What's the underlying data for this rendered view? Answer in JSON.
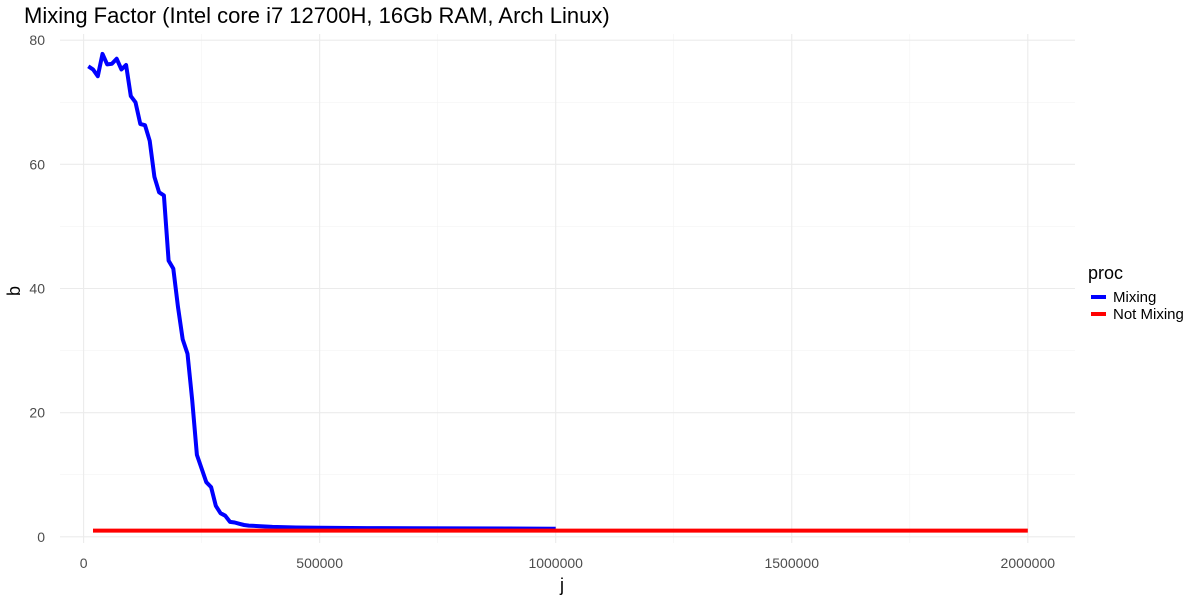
{
  "chart_data": {
    "type": "line",
    "title": "Mixing Factor (Intel core i7 12700H, 16Gb RAM, Arch Linux)",
    "xlabel": "j",
    "ylabel": "b",
    "xlim": [
      -50000,
      2100000
    ],
    "ylim": [
      -1,
      81
    ],
    "x_ticks": [
      0,
      500000,
      1000000,
      1500000,
      2000000
    ],
    "x_tick_labels": [
      "0",
      "500000",
      "1000000",
      "1500000",
      "2000000"
    ],
    "y_ticks": [
      0,
      20,
      40,
      60,
      80
    ],
    "y_tick_labels": [
      "0",
      "20",
      "40",
      "60",
      "80"
    ],
    "grid": true,
    "legend": {
      "title": "proc",
      "position": "right"
    },
    "series": [
      {
        "name": "Mixing",
        "color": "#0000ff",
        "x": [
          10000,
          20000,
          30000,
          40000,
          50000,
          60000,
          70000,
          80000,
          90000,
          100000,
          110000,
          120000,
          130000,
          140000,
          150000,
          160000,
          170000,
          180000,
          190000,
          200000,
          210000,
          220000,
          230000,
          240000,
          250000,
          260000,
          270000,
          280000,
          290000,
          300000,
          310000,
          320000,
          330000,
          340000,
          350000,
          375000,
          400000,
          450000,
          500000,
          600000,
          700000,
          800000,
          900000,
          1000000
        ],
        "y": [
          75.8,
          75.3,
          74.2,
          77.8,
          76.1,
          76.2,
          77.0,
          75.3,
          76.0,
          71.0,
          70.0,
          66.5,
          66.3,
          63.8,
          58.0,
          55.5,
          55.0,
          44.5,
          43.2,
          37.0,
          31.8,
          29.5,
          22.0,
          13.2,
          11.0,
          8.8,
          8.0,
          5.0,
          3.8,
          3.4,
          2.4,
          2.3,
          2.1,
          1.9,
          1.8,
          1.7,
          1.6,
          1.5,
          1.45,
          1.4,
          1.38,
          1.35,
          1.33,
          1.3
        ]
      },
      {
        "name": "Not Mixing",
        "color": "#ff0000",
        "x": [
          20000,
          2000000
        ],
        "y": [
          1.0,
          1.0
        ]
      }
    ]
  }
}
